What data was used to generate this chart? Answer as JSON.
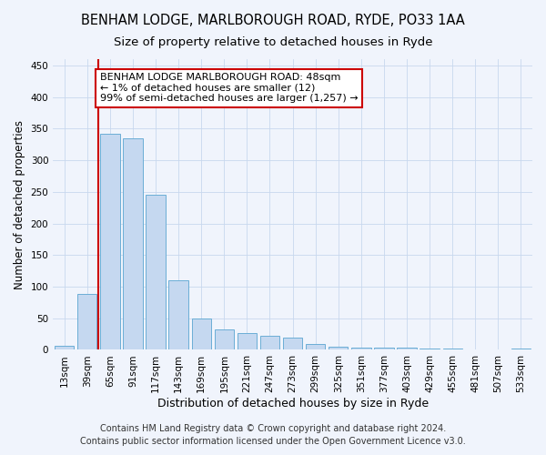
{
  "title": "BENHAM LODGE, MARLBOROUGH ROAD, RYDE, PO33 1AA",
  "subtitle": "Size of property relative to detached houses in Ryde",
  "xlabel": "Distribution of detached houses by size in Ryde",
  "ylabel": "Number of detached properties",
  "categories": [
    "13sqm",
    "39sqm",
    "65sqm",
    "91sqm",
    "117sqm",
    "143sqm",
    "169sqm",
    "195sqm",
    "221sqm",
    "247sqm",
    "273sqm",
    "299sqm",
    "325sqm",
    "351sqm",
    "377sqm",
    "403sqm",
    "429sqm",
    "455sqm",
    "481sqm",
    "507sqm",
    "533sqm"
  ],
  "values": [
    7,
    89,
    342,
    335,
    245,
    110,
    50,
    33,
    27,
    22,
    20,
    10,
    5,
    4,
    4,
    3,
    2,
    2,
    1,
    1,
    2
  ],
  "bar_color": "#c5d8f0",
  "bar_edgecolor": "#6baed6",
  "vline_x": 1.5,
  "vline_color": "#cc0000",
  "annotation_text": "BENHAM LODGE MARLBOROUGH ROAD: 48sqm\n← 1% of detached houses are smaller (12)\n99% of semi-detached houses are larger (1,257) →",
  "annotation_box_edgecolor": "#cc0000",
  "annotation_box_facecolor": "#ffffff",
  "footer": "Contains HM Land Registry data © Crown copyright and database right 2024.\nContains public sector information licensed under the Open Government Licence v3.0.",
  "ylim": [
    0,
    460
  ],
  "yticks": [
    0,
    50,
    100,
    150,
    200,
    250,
    300,
    350,
    400,
    450
  ],
  "title_fontsize": 10.5,
  "subtitle_fontsize": 9.5,
  "ylabel_fontsize": 8.5,
  "xlabel_fontsize": 9,
  "tick_fontsize": 7.5,
  "annotation_fontsize": 8,
  "footer_fontsize": 7,
  "background_color": "#f0f4fc"
}
